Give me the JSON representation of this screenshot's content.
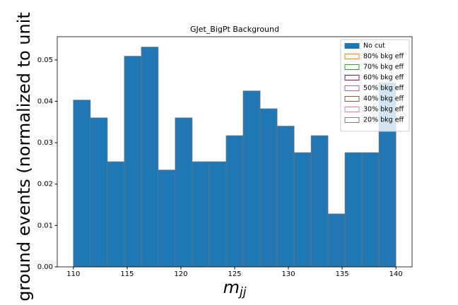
{
  "chart_data": {
    "type": "histogram",
    "title": "GJet_BigPt Background",
    "xlabel": "m",
    "xlabel_sub": "jj",
    "ylabel": "ground events (normalized to unit",
    "bins": [
      110,
      111.58,
      113.16,
      114.74,
      116.32,
      117.89,
      119.47,
      121.05,
      122.63,
      124.21,
      125.79,
      127.37,
      128.95,
      130.53,
      132.11,
      133.68,
      135.26,
      136.84,
      138.42,
      140
    ],
    "series": [
      {
        "name": "No cut",
        "color": "#1f77b4",
        "values": [
          0.0403,
          0.036,
          0.0254,
          0.0509,
          0.0531,
          0.0234,
          0.036,
          0.0254,
          0.0254,
          0.0317,
          0.0425,
          0.0382,
          0.034,
          0.0276,
          0.0317,
          0.0128,
          0.0276,
          0.0276,
          0.0445
        ]
      },
      {
        "name": "80% bkg eff",
        "color": "#ff7f0e"
      },
      {
        "name": "70% bkg eff",
        "color": "#2ca02c"
      },
      {
        "name": "60% bkg eff",
        "color": "#a0122c"
      },
      {
        "name": "50% bkg eff",
        "color": "#9467bd"
      },
      {
        "name": "40% bkg eff",
        "color": "#8c564b"
      },
      {
        "name": "30% bkg eff",
        "color": "#e377c2"
      },
      {
        "name": "20% bkg eff",
        "color": "#7f7f7f"
      }
    ],
    "xlim": [
      108.5,
      141.5
    ],
    "ylim": [
      0,
      0.0556
    ],
    "xticks": [
      110,
      115,
      120,
      125,
      130,
      135,
      140
    ],
    "yticks": [
      {
        "value": 0,
        "label": "0.00"
      },
      0.01,
      0.02,
      0.03,
      0.04,
      0.05
    ],
    "legend": "upper right"
  }
}
